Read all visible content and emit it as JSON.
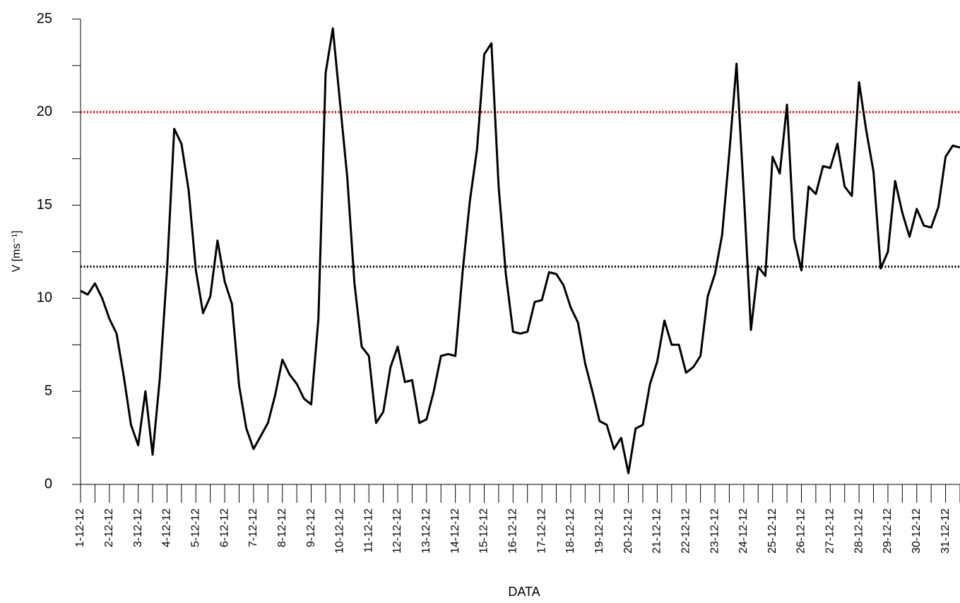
{
  "chart_data": {
    "type": "line",
    "y_label": "V [ms⁻¹]",
    "x_label": "DATA",
    "categories": [
      "1-12-12",
      null,
      null,
      null,
      "2-12-12",
      null,
      null,
      null,
      "3-12-12",
      null,
      null,
      null,
      "4-12-12",
      null,
      null,
      null,
      "5-12-12",
      null,
      null,
      null,
      "6-12-12",
      null,
      null,
      null,
      "7-12-12",
      null,
      null,
      null,
      "8-12-12",
      null,
      null,
      null,
      "9-12-12",
      null,
      null,
      null,
      "10-12-12",
      null,
      null,
      null,
      "11-12-12",
      null,
      null,
      null,
      "12-12-12",
      null,
      null,
      null,
      "13-12-12",
      null,
      null,
      null,
      "14-12-12",
      null,
      null,
      null,
      "15-12-12",
      null,
      null,
      null,
      "16-12-12",
      null,
      null,
      null,
      "17-12-12",
      null,
      null,
      null,
      "18-12-12",
      null,
      null,
      null,
      "19-12-12",
      null,
      null,
      null,
      "20-12-12",
      null,
      null,
      null,
      "21-12-12",
      null,
      null,
      null,
      "22-12-12",
      null,
      null,
      null,
      "23-12-12",
      null,
      null,
      null,
      "24-12-12",
      null,
      null,
      null,
      "25-12-12",
      null,
      null,
      null,
      "26-12-12",
      null,
      null,
      null,
      "27-12-12",
      null,
      null,
      null,
      "28-12-12",
      null,
      null,
      null,
      "29-12-12",
      null,
      null,
      null,
      "30-12-12",
      null,
      null,
      null,
      "31-12-12",
      null,
      null
    ],
    "values": [
      10.4,
      10.2,
      10.8,
      10.0,
      8.9,
      8.1,
      5.8,
      3.2,
      2.1,
      5.0,
      1.6,
      5.7,
      11.5,
      19.1,
      18.3,
      15.8,
      11.5,
      9.2,
      10.1,
      13.1,
      10.9,
      9.7,
      5.3,
      3.0,
      1.9,
      2.6,
      3.3,
      4.8,
      6.7,
      5.9,
      5.4,
      4.6,
      4.3,
      8.9,
      22.1,
      24.5,
      20.5,
      16.5,
      10.8,
      7.4,
      6.9,
      3.3,
      3.9,
      6.3,
      7.4,
      5.5,
      5.6,
      3.3,
      3.5,
      5.0,
      6.9,
      7.0,
      6.9,
      11.4,
      15.2,
      18.0,
      23.1,
      23.7,
      16.0,
      11.3,
      8.2,
      8.1,
      8.2,
      9.8,
      9.9,
      11.4,
      11.3,
      10.7,
      9.5,
      8.7,
      6.5,
      5.0,
      3.4,
      3.2,
      1.9,
      2.5,
      0.6,
      3.0,
      3.2,
      5.4,
      6.6,
      8.8,
      7.5,
      7.5,
      6.0,
      6.3,
      6.9,
      10.1,
      11.3,
      13.4,
      17.8,
      22.6,
      15.7,
      8.3,
      11.7,
      11.2,
      17.6,
      16.7,
      20.4,
      13.2,
      11.5,
      16.0,
      15.6,
      17.1,
      17.0,
      18.3,
      16.0,
      15.5,
      21.6,
      19.0,
      16.8,
      11.6,
      12.5,
      16.3,
      14.6,
      13.3,
      14.8,
      13.9,
      13.8,
      14.9,
      17.6,
      18.2,
      18.1
    ],
    "color": "#000000",
    "reference_lines": [
      {
        "value": 20,
        "color": "#e00000"
      },
      {
        "value": 11.7,
        "color": "#000000"
      }
    ],
    "ylim": [
      0,
      25
    ],
    "yticks": [
      0,
      5,
      10,
      15,
      20,
      25
    ],
    "grid": false
  }
}
